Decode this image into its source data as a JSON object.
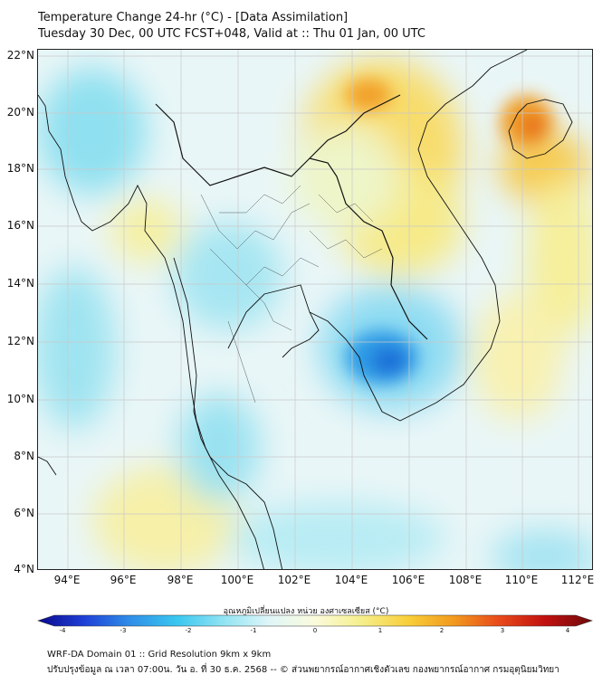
{
  "title": {
    "line1": "Temperature Change 24-hr (°C) - [Data Assimilation]",
    "line2": "Tuesday 30 Dec, 00 UTC FCST+048, Valid at :: Thu 01 Jan, 00 UTC"
  },
  "map": {
    "lat_labels": [
      "22°N",
      "20°N",
      "18°N",
      "16°N",
      "14°N",
      "12°N",
      "10°N",
      "8°N",
      "6°N",
      "4°N"
    ],
    "lon_labels": [
      "94°E",
      "96°E",
      "98°E",
      "100°E",
      "102°E",
      "104°E",
      "106°E",
      "108°E",
      "110°E",
      "112°E"
    ]
  },
  "colorbar": {
    "title": "อุณหภูมิเปลี่ยนแปลง หน่วย องศาเซลเซียส (°C)",
    "ticks": [
      "-4",
      "-3",
      "-2",
      "-1",
      "0",
      "1",
      "2",
      "3",
      "4"
    ],
    "colors": [
      "#0a0a8c",
      "#1f3fd6",
      "#2f8fe8",
      "#39c6ef",
      "#8fe3f3",
      "#dff6f8",
      "#fbfbdc",
      "#f6ef8c",
      "#f8cf3a",
      "#f29a1e",
      "#e8491a",
      "#c01010",
      "#6e0a0a"
    ]
  },
  "footer": {
    "line1": "WRF-DA Domain 01 :: Grid Resolution 9km x 9km",
    "line2": "ปรับปรุงข้อมูล ณ เวลา 07:00น. วัน อ. ที่ 30 ธ.ค. 2568 -- © ส่วนพยากรณ์อากาศเชิงตัวเลข กองพยากรณ์อากาศ กรมอุตุนิยมวิทยา"
  }
}
